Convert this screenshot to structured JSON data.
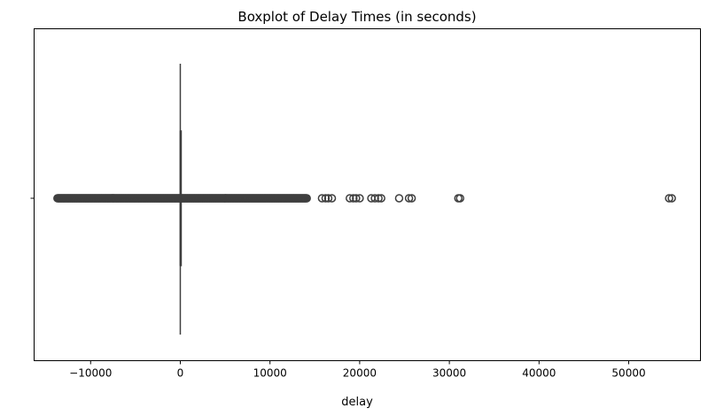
{
  "chart_data": {
    "type": "boxplot",
    "title": "Boxplot of Delay Times (in seconds)",
    "xlabel": "delay",
    "ylabel": "",
    "y_tick_labels": [
      ""
    ],
    "xlim": [
      -16300,
      58000
    ],
    "x_ticks": [
      -10000,
      0,
      10000,
      20000,
      30000,
      40000,
      50000
    ],
    "x_tick_labels": [
      "−10000",
      "0",
      "10000",
      "20000",
      "30000",
      "40000",
      "50000"
    ],
    "grid": false,
    "series": [
      {
        "name": "",
        "whisker_low": 0,
        "q1": 0,
        "median": 0,
        "q3": 0,
        "whisker_high": 0,
        "outliers_dense_range": [
          -13700,
          14100
        ],
        "outliers": [
          15800,
          16200,
          16500,
          16900,
          18900,
          19300,
          19600,
          20000,
          21300,
          21700,
          22100,
          22400,
          24400,
          25500,
          25800,
          31000,
          31200,
          54500,
          54800
        ],
        "color": "#3f3f3f"
      }
    ]
  }
}
